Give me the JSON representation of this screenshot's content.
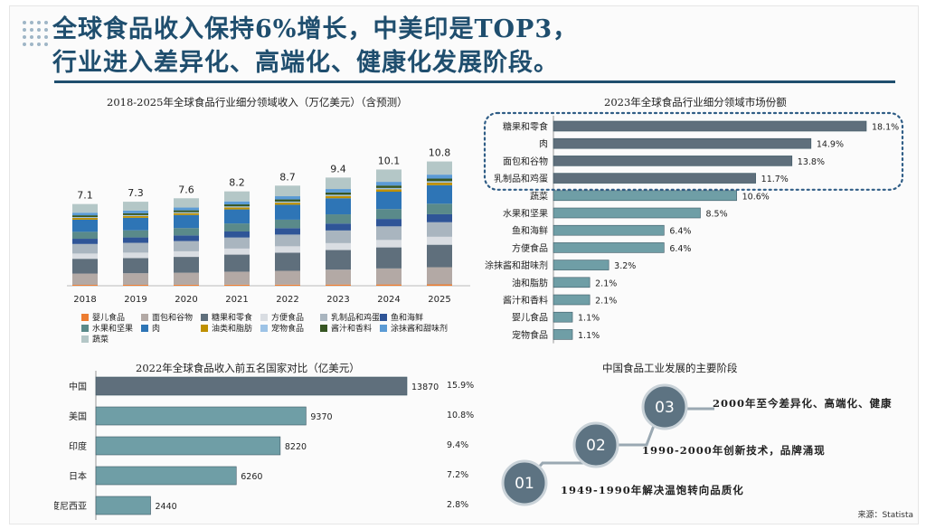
{
  "title": {
    "line1": "全球食品收入保持6%增长，中美印是TOP3，",
    "line2": "行业进入差异化、高端化、健康化发展阶段。"
  },
  "colors": {
    "title": "#1f4e6e",
    "bar_main": "#6f9ea6",
    "bar_top": "#5f6f7c",
    "circle": "#5d7382"
  },
  "chart_data": [
    {
      "type": "bar",
      "stacked": true,
      "title": "2018-2025年全球食品行业细分领域收入（万亿美元）（含预测）",
      "categories": [
        "2018",
        "2019",
        "2020",
        "2021",
        "2022",
        "2023",
        "2024",
        "2025"
      ],
      "totals": [
        7.1,
        7.3,
        7.6,
        8.2,
        8.7,
        9.4,
        10.1,
        10.8
      ],
      "total_labels": [
        "7.1",
        "7.3",
        "7.6",
        "8.2",
        "8.7",
        "9.4",
        "10.1",
        "10.8"
      ],
      "series_shares": [
        {
          "name": "婴儿食品",
          "color": "#ed7d31",
          "share": 0.011
        },
        {
          "name": "面包和谷物",
          "color": "#b3a9a5",
          "share": 0.138
        },
        {
          "name": "糖果和零食",
          "color": "#5f6f7c",
          "share": 0.181
        },
        {
          "name": "方便食品",
          "color": "#d9dde2",
          "share": 0.064
        },
        {
          "name": "乳制品和鸡蛋",
          "color": "#a9b5bf",
          "share": 0.117
        },
        {
          "name": "鱼和海鲜",
          "color": "#2f5597",
          "share": 0.064
        },
        {
          "name": "水果和坚果",
          "color": "#5a8a8a",
          "share": 0.085
        },
        {
          "name": "肉",
          "color": "#2e75b6",
          "share": 0.149
        },
        {
          "name": "油类和脂肪",
          "color": "#bf9000",
          "share": 0.021
        },
        {
          "name": "宠物食品",
          "color": "#9dc3e6",
          "share": 0.011
        },
        {
          "name": "酱汁和香料",
          "color": "#375623",
          "share": 0.021
        },
        {
          "name": "涂抹酱和甜味剂",
          "color": "#5b9bd5",
          "share": 0.032
        },
        {
          "name": "蔬菜",
          "color": "#b4c7c7",
          "share": 0.106
        }
      ],
      "ylim": [
        0,
        11
      ]
    },
    {
      "type": "bar",
      "orientation": "horizontal",
      "title": "2023年全球食品行业细分领域市场份额",
      "categories": [
        "糖果和零食",
        "肉",
        "面包和谷物",
        "乳制品和鸡蛋",
        "蔬菜",
        "水果和坚果",
        "鱼和海鲜",
        "方便食品",
        "涂抹酱和甜味剂",
        "油和脂肪",
        "酱汁和香料",
        "婴儿食品",
        "宠物食品"
      ],
      "values": [
        18.1,
        14.9,
        13.8,
        11.7,
        10.6,
        8.5,
        6.4,
        6.4,
        3.2,
        2.1,
        2.1,
        1.1,
        1.1
      ],
      "value_labels": [
        "18.1%",
        "14.9%",
        "13.8%",
        "11.7%",
        "10.6%",
        "8.5%",
        "6.4%",
        "6.4%",
        "3.2%",
        "2.1%",
        "2.1%",
        "1.1%",
        "1.1%"
      ],
      "highlight_top": 4,
      "xlim": [
        0,
        18.1
      ]
    },
    {
      "type": "bar",
      "orientation": "horizontal",
      "title": "2022年全球食品收入前五名国家对比（亿美元）",
      "categories": [
        "中国",
        "美国",
        "印度",
        "日本",
        "印度尼西亚"
      ],
      "values": [
        13870,
        9370,
        8220,
        6260,
        2440
      ],
      "value_labels": [
        "13870",
        "9370",
        "8220",
        "6260",
        "2440"
      ],
      "share_labels": [
        "15.9%",
        "10.8%",
        "9.4%",
        "7.2%",
        "2.8%"
      ],
      "xlim": [
        0,
        13870
      ]
    }
  ],
  "stages": {
    "title": "中国食品工业发展的主要阶段",
    "items": [
      {
        "num": "01",
        "text": "1949-1990年解决温饱转向品质化"
      },
      {
        "num": "02",
        "text": "1990-2000年创新技术，品牌涌现"
      },
      {
        "num": "03",
        "text": "2000年至今差异化、高端化、健康"
      }
    ]
  },
  "source": "来源：Statista"
}
